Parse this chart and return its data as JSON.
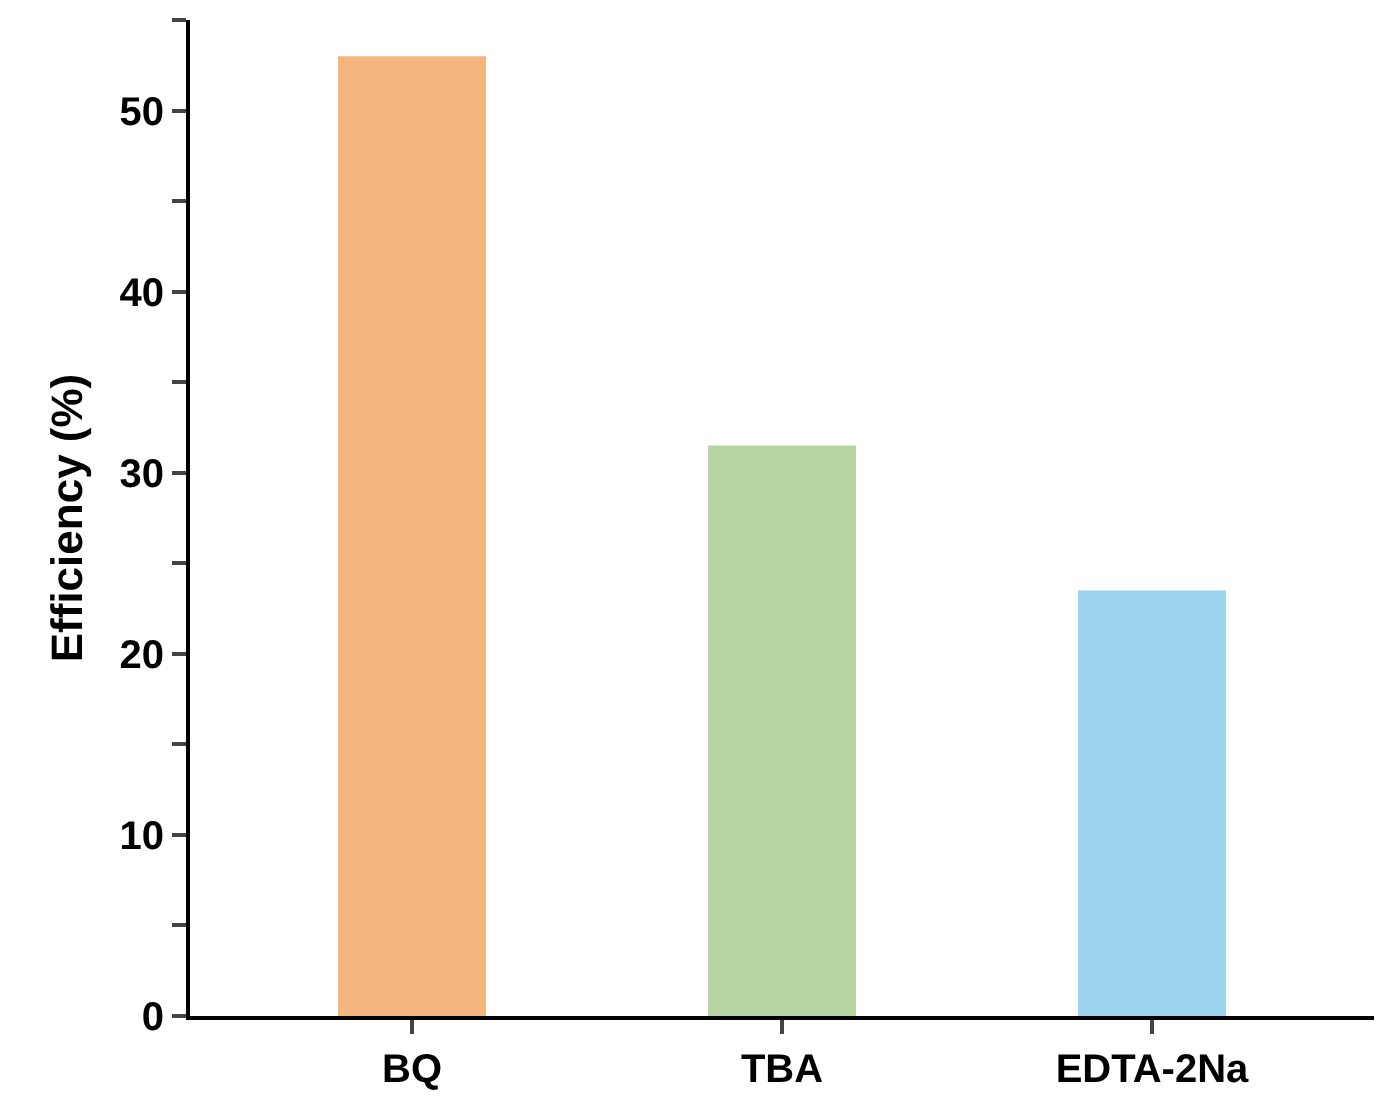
{
  "chart_data": {
    "type": "bar",
    "ylabel": "Efficiency (%)",
    "categories": [
      "BQ",
      "TBA",
      "EDTA-2Na"
    ],
    "values": [
      53.0,
      31.5,
      23.5
    ],
    "colors": [
      "#f5b57e",
      "#b7d4a3",
      "#9dd5f1"
    ],
    "ylim": [
      0,
      55
    ],
    "yticks": [
      0,
      {
        "value": 5,
        "label": null
      },
      10,
      {
        "value": 15,
        "label": null
      },
      20,
      {
        "value": 25,
        "label": null
      },
      30,
      {
        "value": 35,
        "label": null
      },
      40,
      {
        "value": 45,
        "label": null
      },
      50,
      {
        "value": 55,
        "label": null
      }
    ],
    "grid": false,
    "legend": false
  }
}
